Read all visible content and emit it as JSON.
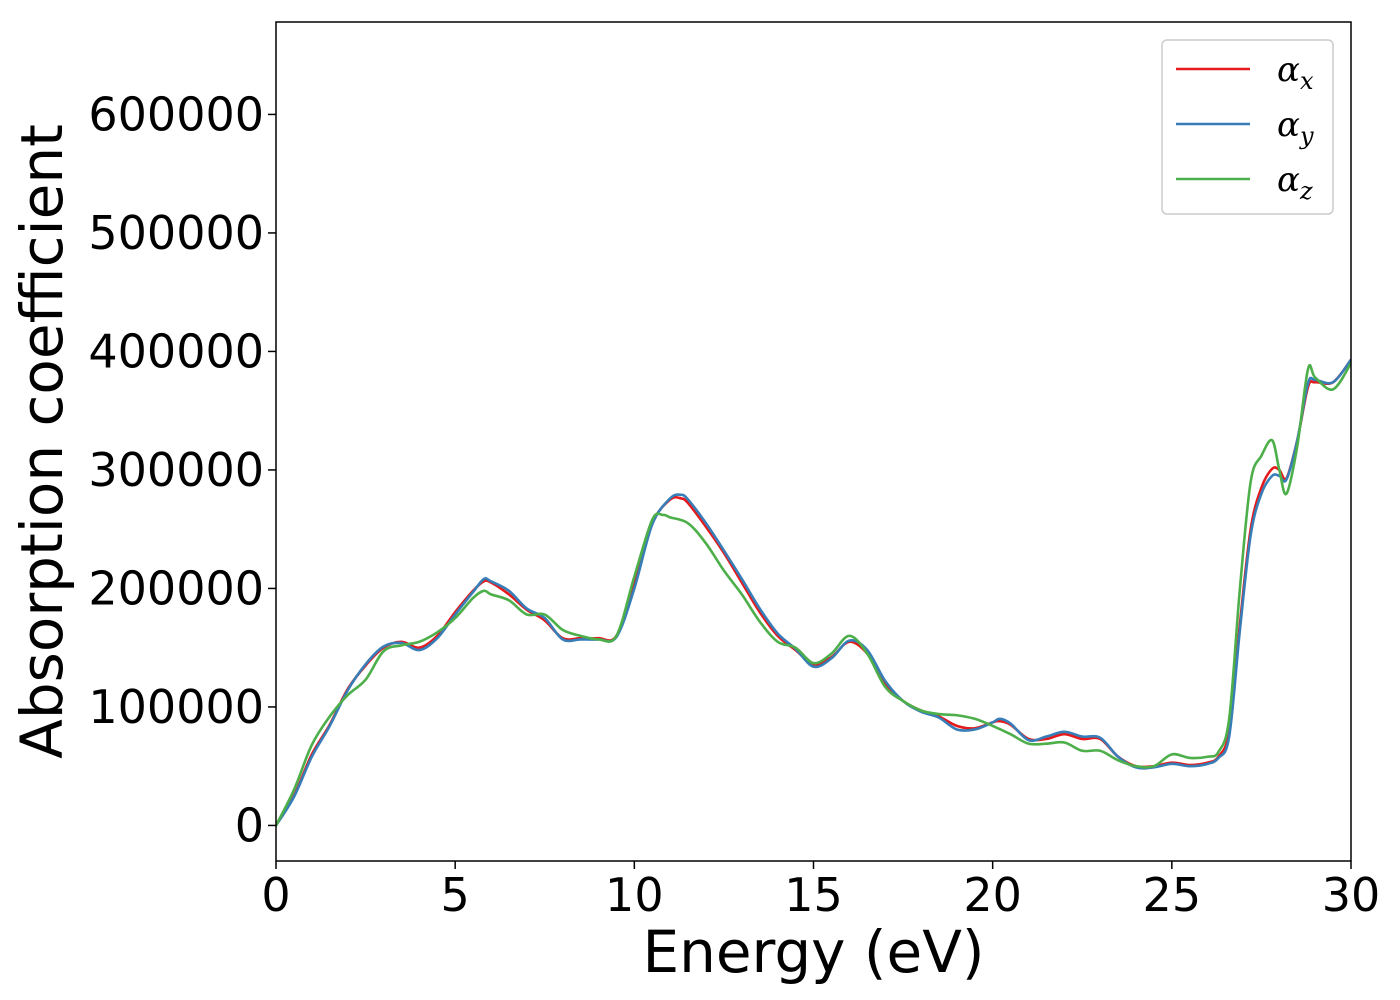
{
  "chart_data": {
    "type": "line",
    "xlabel": "Energy (eV)",
    "ylabel": "Absorption coefficient",
    "xlim": [
      0,
      30
    ],
    "ylim": [
      -30000,
      678000
    ],
    "xticks": [
      0,
      5,
      10,
      15,
      20,
      25,
      30
    ],
    "xtick_labels": [
      "0",
      "5",
      "10",
      "15",
      "20",
      "25",
      "30"
    ],
    "yticks": [
      0,
      100000,
      200000,
      300000,
      400000,
      500000,
      600000
    ],
    "ytick_labels": [
      "0",
      "100000",
      "200000",
      "300000",
      "400000",
      "500000",
      "600000"
    ],
    "grid": false,
    "legend_position": "top-right",
    "series": [
      {
        "name": "α",
        "subscript": "x",
        "color": "#e41a1c",
        "x": [
          0,
          0.5,
          1,
          1.5,
          2,
          2.5,
          3,
          3.5,
          4,
          4.5,
          5,
          5.5,
          5.8,
          6,
          6.5,
          7,
          7.5,
          8,
          8.5,
          9,
          9.5,
          10,
          10.5,
          11,
          11.3,
          11.5,
          12,
          12.5,
          13,
          13.5,
          14,
          14.5,
          15,
          15.5,
          16,
          16.5,
          17,
          17.5,
          18,
          18.5,
          19,
          19.5,
          20,
          20.2,
          20.5,
          21,
          21.5,
          22,
          22.5,
          23,
          23.5,
          24,
          24.5,
          25,
          25.5,
          26,
          26.3,
          26.6,
          26.9,
          27.2,
          27.5,
          27.8,
          28,
          28.2,
          28.5,
          28.8,
          29,
          29.5,
          30
        ],
        "y": [
          0,
          25000,
          60000,
          85000,
          115000,
          135000,
          150000,
          155000,
          150000,
          160000,
          180000,
          198000,
          206000,
          205000,
          195000,
          182000,
          173000,
          158000,
          158000,
          158000,
          160000,
          205000,
          255000,
          275000,
          276000,
          272000,
          252000,
          230000,
          205000,
          180000,
          160000,
          148000,
          136000,
          142000,
          155000,
          145000,
          120000,
          105000,
          97000,
          92000,
          84000,
          82000,
          87000,
          88000,
          85000,
          73000,
          73000,
          77000,
          73000,
          73000,
          58000,
          50000,
          50000,
          53000,
          51000,
          53000,
          58000,
          80000,
          170000,
          250000,
          285000,
          301000,
          300000,
          293000,
          325000,
          370000,
          374000,
          374000,
          393000
        ]
      },
      {
        "name": "α",
        "subscript": "y",
        "color": "#377eb8",
        "x": [
          0,
          0.5,
          1,
          1.5,
          2,
          2.5,
          3,
          3.5,
          4,
          4.5,
          5,
          5.5,
          5.8,
          6,
          6.5,
          7,
          7.5,
          8,
          8.5,
          9,
          9.5,
          10,
          10.5,
          11,
          11.3,
          11.5,
          12,
          12.5,
          13,
          13.5,
          14,
          14.5,
          15,
          15.5,
          16,
          16.5,
          17,
          17.5,
          18,
          18.5,
          19,
          19.5,
          20,
          20.2,
          20.5,
          21,
          21.5,
          22,
          22.5,
          23,
          23.5,
          24,
          24.5,
          25,
          25.5,
          26,
          26.3,
          26.6,
          26.9,
          27.2,
          27.5,
          27.8,
          28,
          28.2,
          28.5,
          28.8,
          29,
          29.5,
          30
        ],
        "y": [
          0,
          24000,
          58000,
          84000,
          114000,
          136000,
          151000,
          154000,
          148000,
          158000,
          178000,
          197000,
          208000,
          206000,
          198000,
          183000,
          175000,
          157000,
          157000,
          157000,
          159000,
          200000,
          254000,
          276000,
          279000,
          275000,
          255000,
          232000,
          208000,
          183000,
          162000,
          149000,
          134000,
          141000,
          156000,
          148000,
          122000,
          105000,
          96000,
          91000,
          81000,
          81000,
          87000,
          90000,
          86000,
          72000,
          75000,
          79000,
          75000,
          74000,
          58000,
          49000,
          49000,
          52000,
          50000,
          52000,
          57000,
          75000,
          165000,
          245000,
          280000,
          295000,
          295000,
          292000,
          325000,
          373000,
          376000,
          374000,
          393000
        ]
      },
      {
        "name": "α",
        "subscript": "z",
        "color": "#4daf4a",
        "x": [
          0,
          0.5,
          1,
          1.5,
          2,
          2.5,
          3,
          3.5,
          4,
          4.5,
          5,
          5.5,
          5.8,
          6,
          6.5,
          7,
          7.5,
          8,
          8.5,
          9,
          9.5,
          10,
          10.5,
          10.8,
          11,
          11.5,
          12,
          12.5,
          13,
          13.5,
          14,
          14.5,
          15,
          15.5,
          16,
          16.5,
          17,
          17.5,
          18,
          18.5,
          19,
          19.5,
          20,
          20.5,
          21,
          21.5,
          22,
          22.5,
          23,
          23.5,
          24,
          24.5,
          25,
          25.5,
          26,
          26.3,
          26.6,
          26.9,
          27.2,
          27.5,
          27.8,
          28,
          28.2,
          28.5,
          28.8,
          29,
          29.5,
          30
        ],
        "y": [
          0,
          30000,
          68000,
          92000,
          110000,
          123000,
          147000,
          152000,
          155000,
          163000,
          175000,
          192000,
          198000,
          195000,
          190000,
          178000,
          178000,
          165000,
          160000,
          157000,
          160000,
          210000,
          258000,
          262000,
          260000,
          255000,
          238000,
          215000,
          195000,
          172000,
          155000,
          150000,
          137000,
          145000,
          160000,
          145000,
          117000,
          105000,
          97000,
          94000,
          93000,
          90000,
          84000,
          77000,
          69000,
          69000,
          70000,
          63000,
          63000,
          55000,
          50000,
          50000,
          60000,
          57000,
          58000,
          62000,
          90000,
          200000,
          290000,
          312000,
          325000,
          300000,
          280000,
          320000,
          385000,
          378000,
          368000,
          390000
        ]
      }
    ]
  }
}
